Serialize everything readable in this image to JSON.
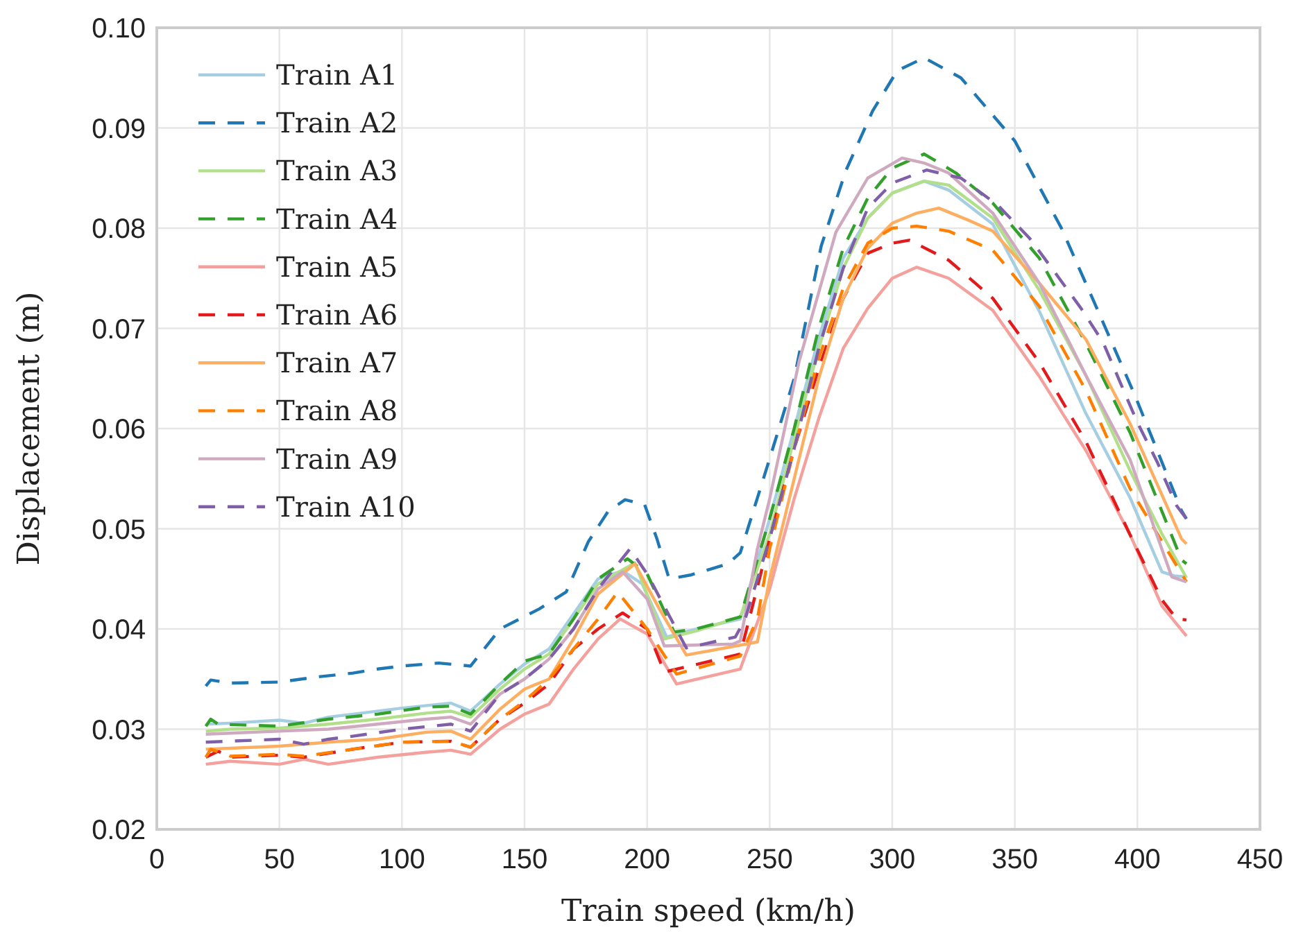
{
  "chart_data": {
    "type": "line",
    "xlabel": "Train speed (km/h)",
    "ylabel": "Displacement (m)",
    "xlim": [
      0,
      450
    ],
    "xticks": [
      0,
      50,
      100,
      150,
      200,
      250,
      300,
      350,
      400,
      450
    ],
    "ylim": [
      0.02,
      0.1
    ],
    "yticks": [
      0.02,
      0.03,
      0.04,
      0.05,
      0.06,
      0.07,
      0.08,
      0.09,
      {
        "value": 0.1,
        "label": "0.10"
      }
    ],
    "grid": true,
    "legend": "top left",
    "series": [
      {
        "name": "Train A1",
        "color": "#a6cee3",
        "line_style": "solid",
        "x": [
          20,
          30,
          50,
          60,
          70,
          80,
          100,
          120,
          128,
          140,
          150,
          160,
          170,
          180,
          190,
          198,
          208,
          220,
          238,
          250,
          260,
          270,
          280,
          290,
          300,
          313,
          323,
          341,
          360,
          379,
          397,
          410,
          415,
          420
        ],
        "values": [
          0.0305,
          0.0306,
          0.0309,
          0.0306,
          0.0312,
          0.0315,
          0.0321,
          0.0326,
          0.0318,
          0.0345,
          0.0365,
          0.038,
          0.0415,
          0.045,
          0.0458,
          0.0445,
          0.0392,
          0.04,
          0.041,
          0.051,
          0.06,
          0.069,
          0.077,
          0.081,
          0.0835,
          0.0847,
          0.0838,
          0.0804,
          0.0717,
          0.0615,
          0.0531,
          0.0457,
          0.0453,
          0.0452
        ]
      },
      {
        "name": "Train A2",
        "color": "#1f78b4",
        "line_style": "dashed",
        "x": [
          20,
          22,
          30,
          50,
          65,
          80,
          90,
          100,
          115,
          128,
          140,
          156,
          167,
          176,
          184,
          191,
          199,
          204,
          209,
          218,
          233,
          238,
          250,
          260,
          271,
          281,
          292,
          302,
          313,
          328,
          350,
          369,
          384,
          399,
          418,
          420
        ],
        "values": [
          0.0343,
          0.0349,
          0.0346,
          0.0347,
          0.0352,
          0.0356,
          0.036,
          0.0363,
          0.0366,
          0.0363,
          0.04,
          0.042,
          0.0437,
          0.0487,
          0.0517,
          0.0529,
          0.0524,
          0.049,
          0.045,
          0.0454,
          0.0465,
          0.0476,
          0.057,
          0.065,
          0.0782,
          0.0857,
          0.0917,
          0.0957,
          0.097,
          0.095,
          0.0887,
          0.08,
          0.0717,
          0.0633,
          0.0518,
          0.051
        ]
      },
      {
        "name": "Train A3",
        "color": "#b2df8a",
        "line_style": "solid",
        "x": [
          20,
          30,
          50,
          70,
          90,
          110,
          120,
          128,
          140,
          150,
          160,
          170,
          180,
          195,
          207,
          220,
          238,
          250,
          260,
          270,
          280,
          290,
          300,
          313,
          323,
          341,
          360,
          379,
          397,
          410,
          420
        ],
        "values": [
          0.0298,
          0.03,
          0.0301,
          0.0305,
          0.031,
          0.0316,
          0.0318,
          0.0312,
          0.034,
          0.036,
          0.0375,
          0.041,
          0.0445,
          0.0466,
          0.039,
          0.0398,
          0.0412,
          0.0495,
          0.059,
          0.068,
          0.076,
          0.081,
          0.0835,
          0.0847,
          0.0843,
          0.081,
          0.0738,
          0.0653,
          0.0558,
          0.0495,
          0.0451
        ]
      },
      {
        "name": "Train A4",
        "color": "#33a02c",
        "line_style": "dashed",
        "x": [
          20,
          22,
          25,
          50,
          70,
          90,
          110,
          120,
          128,
          140,
          150,
          160,
          170,
          180,
          192,
          200,
          211,
          220,
          238,
          250,
          260,
          270,
          280,
          290,
          300,
          313,
          326,
          341,
          360,
          379,
          397,
          418,
          420
        ],
        "values": [
          0.0303,
          0.031,
          0.0305,
          0.0303,
          0.031,
          0.0315,
          0.0322,
          0.0323,
          0.0315,
          0.0345,
          0.0368,
          0.0375,
          0.041,
          0.045,
          0.047,
          0.0455,
          0.0397,
          0.04,
          0.0412,
          0.051,
          0.06,
          0.07,
          0.078,
          0.083,
          0.086,
          0.0874,
          0.0855,
          0.0825,
          0.077,
          0.0685,
          0.0596,
          0.0469,
          0.0465
        ]
      },
      {
        "name": "Train A5",
        "color": "#f4a09c",
        "line_style": "solid",
        "x": [
          20,
          30,
          50,
          60,
          70,
          90,
          110,
          120,
          128,
          140,
          150,
          160,
          170,
          180,
          189,
          200,
          212,
          238,
          250,
          260,
          270,
          280,
          290,
          300,
          310,
          323,
          341,
          360,
          379,
          397,
          410,
          420
        ],
        "values": [
          0.0265,
          0.0268,
          0.0265,
          0.027,
          0.0265,
          0.0272,
          0.0277,
          0.0279,
          0.0275,
          0.03,
          0.0315,
          0.0325,
          0.036,
          0.039,
          0.041,
          0.0395,
          0.0345,
          0.036,
          0.044,
          0.053,
          0.061,
          0.068,
          0.072,
          0.075,
          0.0761,
          0.075,
          0.0718,
          0.0652,
          0.0578,
          0.0494,
          0.0423,
          0.0393
        ]
      },
      {
        "name": "Train A6",
        "color": "#e31a1c",
        "line_style": "dashed",
        "x": [
          20,
          25,
          30,
          50,
          60,
          80,
          100,
          120,
          128,
          140,
          150,
          160,
          170,
          180,
          190,
          200,
          207,
          238,
          250,
          260,
          270,
          280,
          290,
          300,
          307,
          323,
          341,
          360,
          379,
          397,
          410,
          416,
          420
        ],
        "values": [
          0.0272,
          0.0278,
          0.0272,
          0.0274,
          0.0272,
          0.028,
          0.0287,
          0.0288,
          0.0282,
          0.031,
          0.0326,
          0.0345,
          0.038,
          0.04,
          0.0416,
          0.04,
          0.0357,
          0.0375,
          0.049,
          0.058,
          0.066,
          0.073,
          0.0775,
          0.0785,
          0.0788,
          0.0768,
          0.073,
          0.0666,
          0.0587,
          0.0494,
          0.0429,
          0.041,
          0.0409
        ]
      },
      {
        "name": "Train A7",
        "color": "#fdae61",
        "line_style": "solid",
        "x": [
          20,
          30,
          50,
          70,
          90,
          110,
          120,
          128,
          140,
          150,
          160,
          170,
          180,
          195,
          205,
          216,
          245,
          250,
          260,
          270,
          280,
          290,
          300,
          310,
          319,
          332,
          341,
          360,
          379,
          397,
          418,
          420
        ],
        "values": [
          0.028,
          0.0281,
          0.0283,
          0.0287,
          0.029,
          0.0297,
          0.0298,
          0.029,
          0.032,
          0.034,
          0.035,
          0.039,
          0.0435,
          0.0465,
          0.042,
          0.0374,
          0.0387,
          0.045,
          0.055,
          0.065,
          0.073,
          0.078,
          0.0805,
          0.0815,
          0.082,
          0.0807,
          0.0797,
          0.0745,
          0.0689,
          0.0605,
          0.049,
          0.0485
        ]
      },
      {
        "name": "Train A8",
        "color": "#ff7f00",
        "line_style": "dashed",
        "x": [
          20,
          22,
          30,
          50,
          60,
          80,
          100,
          120,
          128,
          140,
          150,
          160,
          170,
          180,
          188,
          200,
          212,
          238,
          245,
          250,
          260,
          270,
          280,
          290,
          300,
          310,
          323,
          341,
          360,
          379,
          397,
          420
        ],
        "values": [
          0.0272,
          0.028,
          0.0273,
          0.0275,
          0.0273,
          0.028,
          0.0287,
          0.0288,
          0.0282,
          0.031,
          0.0328,
          0.035,
          0.038,
          0.041,
          0.0437,
          0.04,
          0.0355,
          0.0373,
          0.041,
          0.048,
          0.058,
          0.067,
          0.074,
          0.0785,
          0.08,
          0.0802,
          0.0797,
          0.0778,
          0.0722,
          0.0638,
          0.054,
          0.0447
        ]
      },
      {
        "name": "Train A9",
        "color": "#cfa9bf",
        "line_style": "solid",
        "x": [
          20,
          30,
          50,
          70,
          90,
          110,
          120,
          128,
          140,
          150,
          160,
          170,
          180,
          190,
          200,
          207,
          235,
          238,
          245,
          250,
          262,
          277,
          290,
          304,
          313,
          323,
          341,
          360,
          379,
          397,
          414,
          420
        ],
        "values": [
          0.0295,
          0.0296,
          0.0298,
          0.03,
          0.0305,
          0.031,
          0.0312,
          0.0305,
          0.0335,
          0.035,
          0.037,
          0.04,
          0.044,
          0.0457,
          0.043,
          0.0383,
          0.0385,
          0.0388,
          0.048,
          0.053,
          0.0667,
          0.0796,
          0.085,
          0.087,
          0.0865,
          0.0855,
          0.0815,
          0.0745,
          0.0653,
          0.0569,
          0.0452,
          0.0447
        ]
      },
      {
        "name": "Train A10",
        "color": "#7f5fa8",
        "line_style": "dashed",
        "x": [
          20,
          30,
          50,
          60,
          70,
          80,
          100,
          120,
          128,
          140,
          150,
          160,
          170,
          180,
          193,
          200,
          216,
          236,
          240,
          250,
          260,
          270,
          280,
          290,
          300,
          314,
          328,
          343,
          356,
          366,
          377,
          386,
          393,
          400,
          408,
          416,
          420
        ],
        "values": [
          0.0287,
          0.0288,
          0.029,
          0.0285,
          0.029,
          0.0293,
          0.03,
          0.0305,
          0.0298,
          0.0335,
          0.035,
          0.037,
          0.04,
          0.044,
          0.048,
          0.0455,
          0.0381,
          0.0392,
          0.041,
          0.049,
          0.058,
          0.068,
          0.076,
          0.082,
          0.0845,
          0.0858,
          0.085,
          0.0823,
          0.079,
          0.0757,
          0.072,
          0.0686,
          0.0646,
          0.0606,
          0.0567,
          0.0523,
          0.051
        ]
      }
    ]
  }
}
